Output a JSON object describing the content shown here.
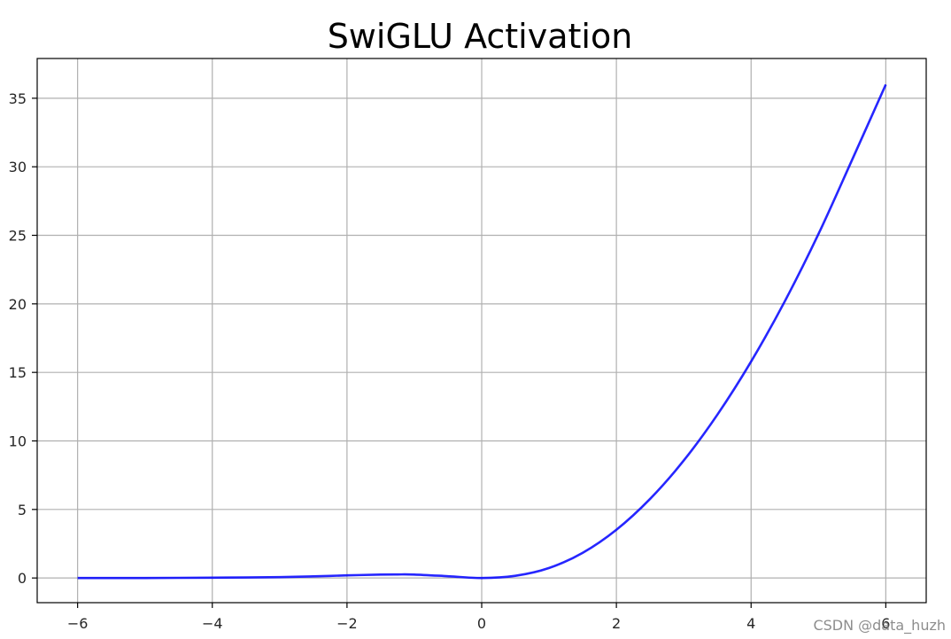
{
  "chart_data": {
    "type": "line",
    "title": "SwiGLU Activation",
    "xlabel": "",
    "ylabel": "",
    "xlim": [
      -6.6,
      6.6
    ],
    "ylim": [
      -1.8,
      37.9
    ],
    "grid": true,
    "x_ticks": [
      -6,
      -4,
      -2,
      0,
      2,
      4,
      6
    ],
    "x_tick_labels": [
      "−6",
      "−4",
      "−2",
      "0",
      "2",
      "4",
      "6"
    ],
    "y_ticks": [
      0,
      5,
      10,
      15,
      20,
      25,
      30,
      35
    ],
    "y_tick_labels": [
      "0",
      "5",
      "10",
      "15",
      "20",
      "25",
      "30",
      "35"
    ],
    "series": [
      {
        "color": "#0000ff",
        "x": [
          -6,
          -5.5,
          -5,
          -4.5,
          -4,
          -3.5,
          -3,
          -2.5,
          -2,
          -1.5,
          -1.25,
          -1,
          -0.5,
          0,
          0.5,
          1,
          1.5,
          2,
          2.5,
          3,
          3.5,
          4,
          4.5,
          5,
          5.5,
          6
        ],
        "y": [
          0.0,
          0.0,
          0.0,
          0.01,
          0.02,
          0.04,
          0.06,
          0.12,
          0.19,
          0.25,
          0.26,
          0.25,
          0.13,
          0.0,
          0.16,
          0.73,
          1.84,
          3.52,
          5.77,
          8.57,
          11.92,
          15.79,
          20.18,
          25.09,
          30.51,
          36.0
        ]
      }
    ]
  },
  "watermark": "CSDN @data_huzh"
}
